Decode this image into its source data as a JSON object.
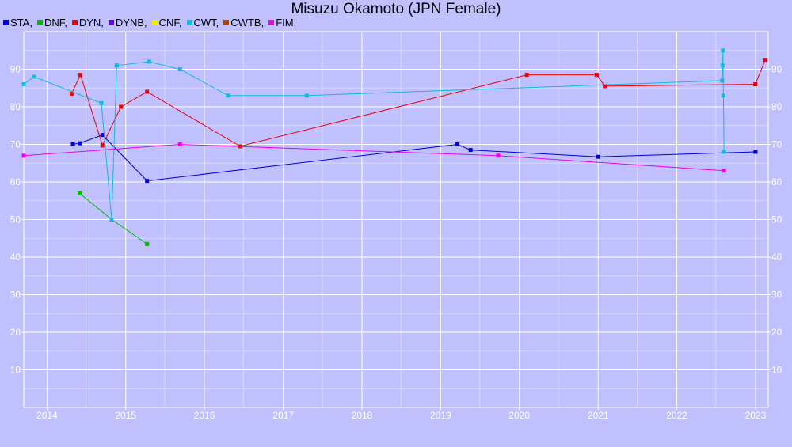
{
  "chart_data": {
    "type": "line",
    "title": "Misuzu Okamoto (JPN Female)",
    "xlabel": "",
    "ylabel": "",
    "x_type": "date",
    "xlim": [
      "2013-09-15",
      "2023-03-01"
    ],
    "ylim": [
      0,
      100
    ],
    "x_ticks": [
      "2014",
      "2015",
      "2016",
      "2017",
      "2018",
      "2019",
      "2020",
      "2021",
      "2022",
      "2023"
    ],
    "y_ticks": [
      10,
      20,
      30,
      40,
      50,
      60,
      70,
      80,
      90
    ],
    "grid": true,
    "legend_position": "top-left",
    "series": [
      {
        "name": "STA,",
        "color": "#0000dd",
        "points": [
          [
            "2014-05-01",
            70
          ],
          [
            "2014-06-01",
            70.3
          ],
          [
            "2014-09-15",
            72.5
          ],
          [
            "2015-04-10",
            60.3
          ],
          [
            "2019-03-20",
            70
          ],
          [
            "2019-05-20",
            68.5
          ],
          [
            "2021-01-01",
            66.7
          ],
          [
            "2023-01-01",
            68
          ]
        ]
      },
      {
        "name": "DNF,",
        "color": "#00bb00",
        "points": [
          [
            "2014-06-01",
            57
          ],
          [
            "2014-10-28",
            50
          ],
          [
            "2015-04-10",
            43.5
          ]
        ]
      },
      {
        "name": "DYN,",
        "color": "#ee0000",
        "points": [
          [
            "2014-04-25",
            83.5
          ],
          [
            "2014-06-05",
            88.5
          ],
          [
            "2014-09-15",
            69.7
          ],
          [
            "2014-12-10",
            80
          ],
          [
            "2015-04-10",
            84
          ],
          [
            "2016-06-15",
            69.5
          ],
          [
            "2020-02-05",
            88.5
          ],
          [
            "2020-12-25",
            88.5
          ],
          [
            "2021-02-01",
            85.5
          ],
          [
            "2022-12-31",
            86
          ],
          [
            "2023-02-15",
            92.5
          ]
        ]
      },
      {
        "name": "DYNB,",
        "color": "#6600ee",
        "points": []
      },
      {
        "name": "CNF,",
        "color": "#eeee00",
        "points": []
      },
      {
        "name": "CWT,",
        "color": "#11bbdd",
        "points": [
          [
            "2013-09-15",
            86
          ],
          [
            "2013-11-01",
            88
          ],
          [
            "2014-09-10",
            81
          ],
          [
            "2014-10-28",
            50
          ],
          [
            "2014-11-20",
            91
          ],
          [
            "2015-04-20",
            92
          ],
          [
            "2015-09-10",
            90
          ],
          [
            "2016-04-20",
            83
          ],
          [
            "2017-04-20",
            83
          ],
          [
            "2022-07-30",
            87
          ],
          [
            "2022-08-01",
            91
          ],
          [
            "2022-08-03",
            95
          ],
          [
            "2022-08-05",
            83
          ],
          [
            "2022-08-08",
            68
          ]
        ]
      },
      {
        "name": "CWTB,",
        "color": "#aa4400",
        "points": []
      },
      {
        "name": "FIM,",
        "color": "#ee00ee",
        "points": [
          [
            "2013-09-15",
            67
          ],
          [
            "2015-09-10",
            70
          ],
          [
            "2019-09-25",
            67
          ],
          [
            "2022-08-08",
            63
          ]
        ]
      }
    ]
  }
}
